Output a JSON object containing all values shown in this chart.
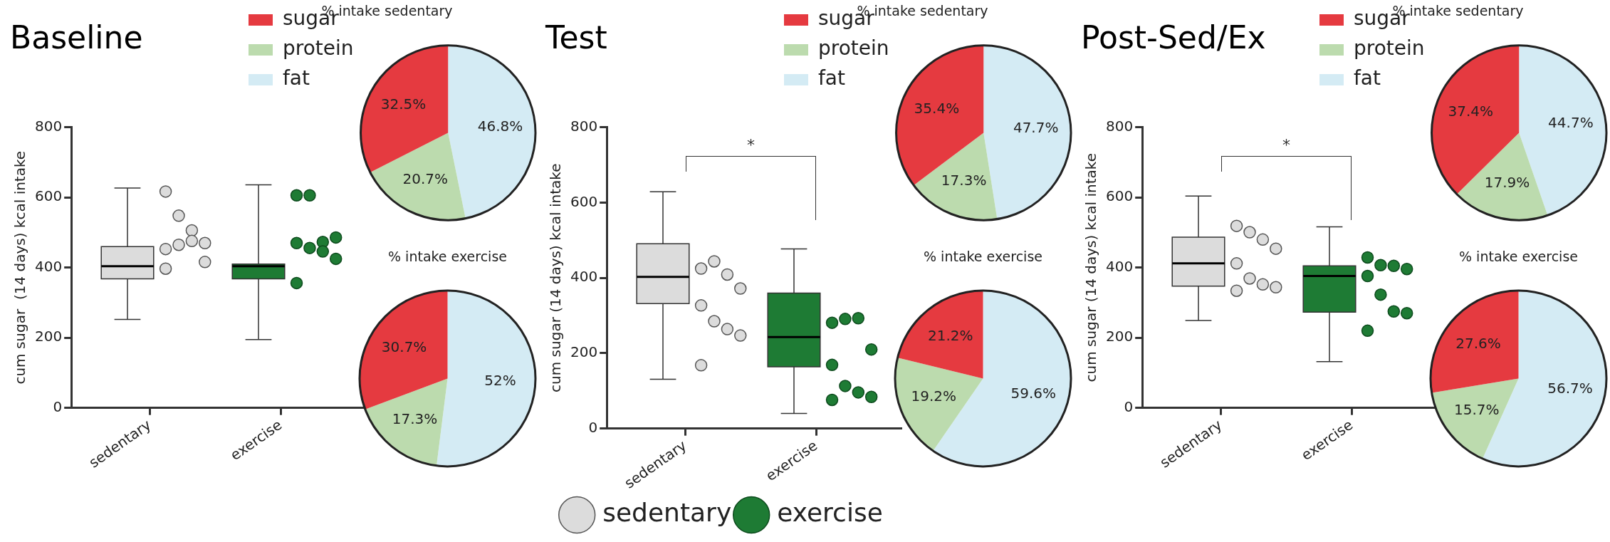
{
  "chart_data": [
    {
      "type": "box",
      "title": "Baseline",
      "ylabel": "cum sugar  (14 days) kcal intake",
      "categories": [
        "sedentary",
        "exercise"
      ],
      "ylim": [
        0,
        800
      ],
      "yticks": [
        0,
        200,
        400,
        600,
        800
      ],
      "marker": "circle",
      "boxes": [
        {
          "low": 252,
          "q1": 368,
          "median": 404,
          "q3": 460,
          "high": 627
        },
        {
          "low": 195,
          "q1": 368,
          "median": 404,
          "q3": 410,
          "high": 636
        }
      ],
      "colors": [
        "#dcdcdc",
        "#1e7b34"
      ],
      "series": [
        {
          "type": "scatter",
          "color": "#dcdcdc",
          "x": [
            "sedentary",
            "sedentary",
            "sedentary",
            "sedentary",
            "sedentary",
            "sedentary",
            "sedentary",
            "sedentary",
            "sedentary"
          ],
          "values": [
            617,
            548,
            506,
            470,
            453,
            465,
            476,
            416,
            397
          ]
        },
        {
          "type": "scatter",
          "color": "#1e7b34",
          "x": [
            "exercise",
            "exercise",
            "exercise",
            "exercise",
            "exercise",
            "exercise",
            "exercise",
            "exercise",
            "exercise"
          ],
          "values": [
            606,
            606,
            473,
            486,
            470,
            456,
            446,
            425,
            356
          ]
        }
      ]
    },
    {
      "type": "pie",
      "title": "% intake sedentary",
      "categories": [
        "sugar",
        "protein",
        "fat"
      ],
      "values": [
        32.5,
        20.7,
        46.8
      ],
      "value_labels": [
        "32.5%",
        "20.7%",
        "46.8%"
      ],
      "colors": [
        "#e53a40",
        "#bcdbae",
        "#d4ebf4"
      ],
      "legend": "left"
    },
    {
      "type": "pie",
      "title": "% intake exercise",
      "categories": [
        null,
        null,
        null
      ],
      "values": [
        30.7,
        17.3,
        52
      ],
      "value_labels": [
        "30.7%",
        "17.3%",
        "52%"
      ],
      "colors": [
        "#e53a40",
        "#bcdbae",
        "#d4ebf4"
      ]
    },
    {
      "type": "box",
      "title": "Test",
      "ylabel": "cum sugar (14 days) kcal intake",
      "categories": [
        "sedentary",
        "exercise"
      ],
      "ylim": [
        0,
        800
      ],
      "yticks": [
        0,
        200,
        400,
        600,
        800
      ],
      "annotations": [
        "*"
      ],
      "legend": "bottom",
      "marker": "circle",
      "boxes": [
        {
          "low": 131,
          "q1": 332,
          "median": 403,
          "q3": 491,
          "high": 629
        },
        {
          "low": 40,
          "q1": 164,
          "median": 243,
          "q3": 360,
          "high": 477
        }
      ],
      "colors": [
        "#dcdcdc",
        "#1e7b34"
      ],
      "series": [
        {
          "type": "scatter",
          "name": "sedentary",
          "color": "#dcdcdc",
          "x": [
            "sedentary",
            "sedentary",
            "sedentary",
            "sedentary",
            "sedentary",
            "sedentary",
            "sedentary",
            "sedentary",
            "sedentary"
          ],
          "values": [
            425,
            444,
            409,
            372,
            327,
            285,
            264,
            247,
            168
          ]
        },
        {
          "type": "scatter",
          "name": "exercise",
          "color": "#1e7b34",
          "x": [
            "exercise",
            "exercise",
            "exercise",
            "exercise",
            "exercise",
            "exercise",
            "exercise",
            "exercise",
            "exercise"
          ],
          "values": [
            281,
            291,
            293,
            210,
            169,
            113,
            96,
            84,
            76
          ]
        }
      ]
    },
    {
      "type": "pie",
      "title": "% intake sedentary",
      "categories": [
        "sugar",
        "protein",
        "fat"
      ],
      "values": [
        35.4,
        17.3,
        47.7
      ],
      "value_labels": [
        "35.4%",
        "17.3%",
        "47.7%"
      ],
      "colors": [
        "#e53a40",
        "#bcdbae",
        "#d4ebf4"
      ],
      "legend": "left"
    },
    {
      "type": "pie",
      "title": "% intake exercise",
      "categories": [
        null,
        null,
        null
      ],
      "values": [
        21.2,
        19.2,
        59.6
      ],
      "value_labels": [
        "21.2%",
        "19.2%",
        "59.6%"
      ],
      "colors": [
        "#e53a40",
        "#bcdbae",
        "#d4ebf4"
      ]
    },
    {
      "type": "box",
      "title": "Post-Sed/Ex",
      "ylabel": "cum sugar (14 days) kcal intake",
      "categories": [
        "sedentary",
        "exercise"
      ],
      "ylim": [
        0,
        800
      ],
      "yticks": [
        0,
        200,
        400,
        600,
        800
      ],
      "annotations": [
        "*"
      ],
      "marker": "circle",
      "boxes": [
        {
          "low": 249,
          "q1": 347,
          "median": 412,
          "q3": 487,
          "high": 604
        },
        {
          "low": 132,
          "q1": 273,
          "median": 376,
          "q3": 405,
          "high": 516
        }
      ],
      "colors": [
        "#dcdcdc",
        "#1e7b34"
      ],
      "series": [
        {
          "type": "scatter",
          "color": "#dcdcdc",
          "x": [
            "sedentary",
            "sedentary",
            "sedentary",
            "sedentary",
            "sedentary",
            "sedentary",
            "sedentary",
            "sedentary",
            "sedentary"
          ],
          "values": [
            519,
            501,
            480,
            454,
            412,
            369,
            352,
            344,
            334
          ]
        },
        {
          "type": "scatter",
          "color": "#1e7b34",
          "x": [
            "exercise",
            "exercise",
            "exercise",
            "exercise",
            "exercise",
            "exercise",
            "exercise",
            "exercise",
            "exercise"
          ],
          "values": [
            429,
            407,
            405,
            396,
            376,
            323,
            275,
            270,
            220
          ]
        }
      ]
    },
    {
      "type": "pie",
      "title": "% intake sedentary",
      "categories": [
        "sugar",
        "protein",
        "fat"
      ],
      "values": [
        37.4,
        17.9,
        44.7
      ],
      "value_labels": [
        "37.4%",
        "17.9%",
        "44.7%"
      ],
      "colors": [
        "#e53a40",
        "#bcdbae",
        "#d4ebf4"
      ],
      "legend": "left"
    },
    {
      "type": "pie",
      "title": "% intake exercise",
      "categories": [
        null,
        null,
        null
      ],
      "values": [
        27.6,
        15.7,
        56.7
      ],
      "value_labels": [
        "27.6%",
        "15.7%",
        "56.7%"
      ],
      "colors": [
        "#e53a40",
        "#bcdbae",
        "#d4ebf4"
      ]
    }
  ]
}
